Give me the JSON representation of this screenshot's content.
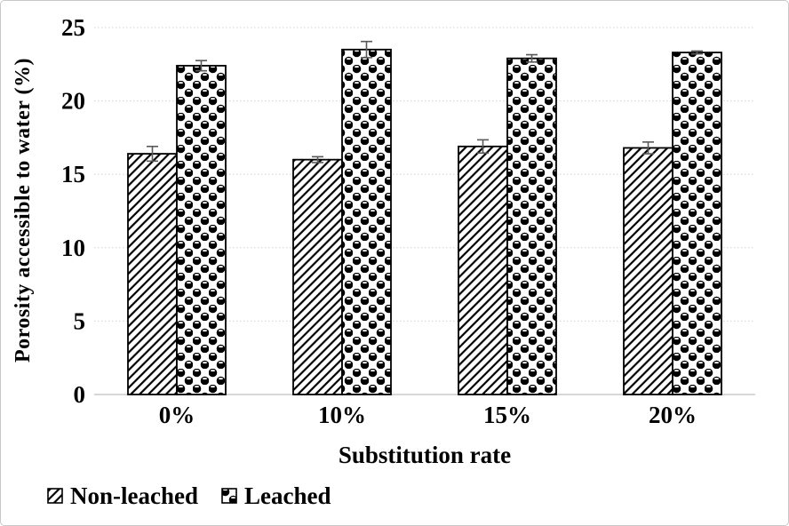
{
  "chart_data": {
    "type": "bar",
    "title": "",
    "xlabel": "Substitution rate",
    "ylabel": "Porosity accessible to water (%)",
    "categories": [
      "0%",
      "10%",
      "15%",
      "20%"
    ],
    "series": [
      {
        "name": "Non-leached",
        "pattern": "diagonal-hatch",
        "values": [
          16.4,
          16.0,
          16.9,
          16.8
        ],
        "errors": [
          0.5,
          0.2,
          0.45,
          0.4
        ]
      },
      {
        "name": "Leached",
        "pattern": "sphere-checker",
        "values": [
          22.4,
          23.5,
          22.9,
          23.3
        ],
        "errors": [
          0.35,
          0.55,
          0.25,
          0.1
        ]
      }
    ],
    "ylim": [
      0,
      25
    ],
    "yticks": [
      0,
      5,
      10,
      15,
      20,
      25
    ],
    "grid": "horizontal-dotted",
    "legend_position": "bottom-left",
    "bar_outline_color": "#000000",
    "pattern_color": "#000000",
    "gridline_color": "#d2d2d2",
    "axis_line_color": "#bfbfbf",
    "error_bar_color": "#595959"
  }
}
